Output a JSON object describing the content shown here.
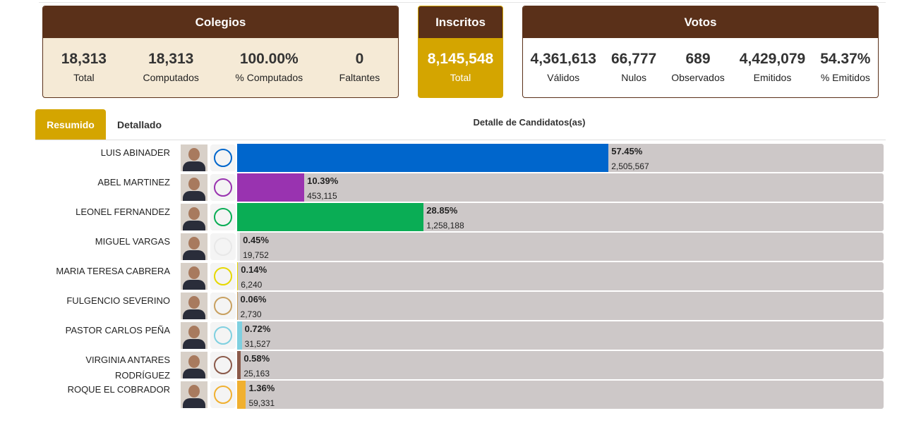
{
  "summary": {
    "colegios": {
      "title": "Colegios",
      "items": [
        {
          "value": "18,313",
          "label": "Total"
        },
        {
          "value": "18,313",
          "label": "Computados"
        },
        {
          "value": "100.00%",
          "label": "% Computados"
        },
        {
          "value": "0",
          "label": "Faltantes"
        }
      ]
    },
    "inscritos": {
      "title": "Inscritos",
      "items": [
        {
          "value": "8,145,548",
          "label": "Total"
        }
      ]
    },
    "votos": {
      "title": "Votos",
      "items": [
        {
          "value": "4,361,613",
          "label": "Válidos"
        },
        {
          "value": "66,777",
          "label": "Nulos"
        },
        {
          "value": "689",
          "label": "Observados"
        },
        {
          "value": "4,429,079",
          "label": "Emitidos"
        },
        {
          "value": "54.37%",
          "label": "% Emitidos"
        }
      ]
    }
  },
  "tabs": [
    "Resumido",
    "Detallado"
  ],
  "section_title": "Detalle de Candidatos(as)",
  "candidates": [
    {
      "name": "LUIS ABINADER",
      "pct": 57.45,
      "pct_label": "57.45%",
      "votes": 2505567,
      "votes_label": "2,505,567",
      "color": "#0066cc"
    },
    {
      "name": "ABEL MARTINEZ",
      "pct": 10.39,
      "pct_label": "10.39%",
      "votes": 453115,
      "votes_label": "453,115",
      "color": "#9933b0"
    },
    {
      "name": "LEONEL FERNANDEZ",
      "pct": 28.85,
      "pct_label": "28.85%",
      "votes": 1258188,
      "votes_label": "1,258,188",
      "color": "#0aad55"
    },
    {
      "name": "MIGUEL VARGAS",
      "pct": 0.45,
      "pct_label": "0.45%",
      "votes": 19752,
      "votes_label": "19,752",
      "color": "#e8e8e8"
    },
    {
      "name": "MARIA TERESA CABRERA",
      "pct": 0.14,
      "pct_label": "0.14%",
      "votes": 6240,
      "votes_label": "6,240",
      "color": "#e6d800"
    },
    {
      "name": "FULGENCIO SEVERINO",
      "pct": 0.06,
      "pct_label": "0.06%",
      "votes": 2730,
      "votes_label": "2,730",
      "color": "#c8a060"
    },
    {
      "name": "PASTOR CARLOS PEÑA",
      "pct": 0.72,
      "pct_label": "0.72%",
      "votes": 31527,
      "votes_label": "31,527",
      "color": "#7fd0e0"
    },
    {
      "name": "VIRGINIA ANTARES RODRÍGUEZ",
      "pct": 0.58,
      "pct_label": "0.58%",
      "votes": 25163,
      "votes_label": "25,163",
      "color": "#8b5a4a"
    },
    {
      "name": "ROQUE EL COBRADOR",
      "pct": 1.36,
      "pct_label": "1.36%",
      "votes": 59331,
      "votes_label": "59,331",
      "color": "#f0b030"
    }
  ]
}
